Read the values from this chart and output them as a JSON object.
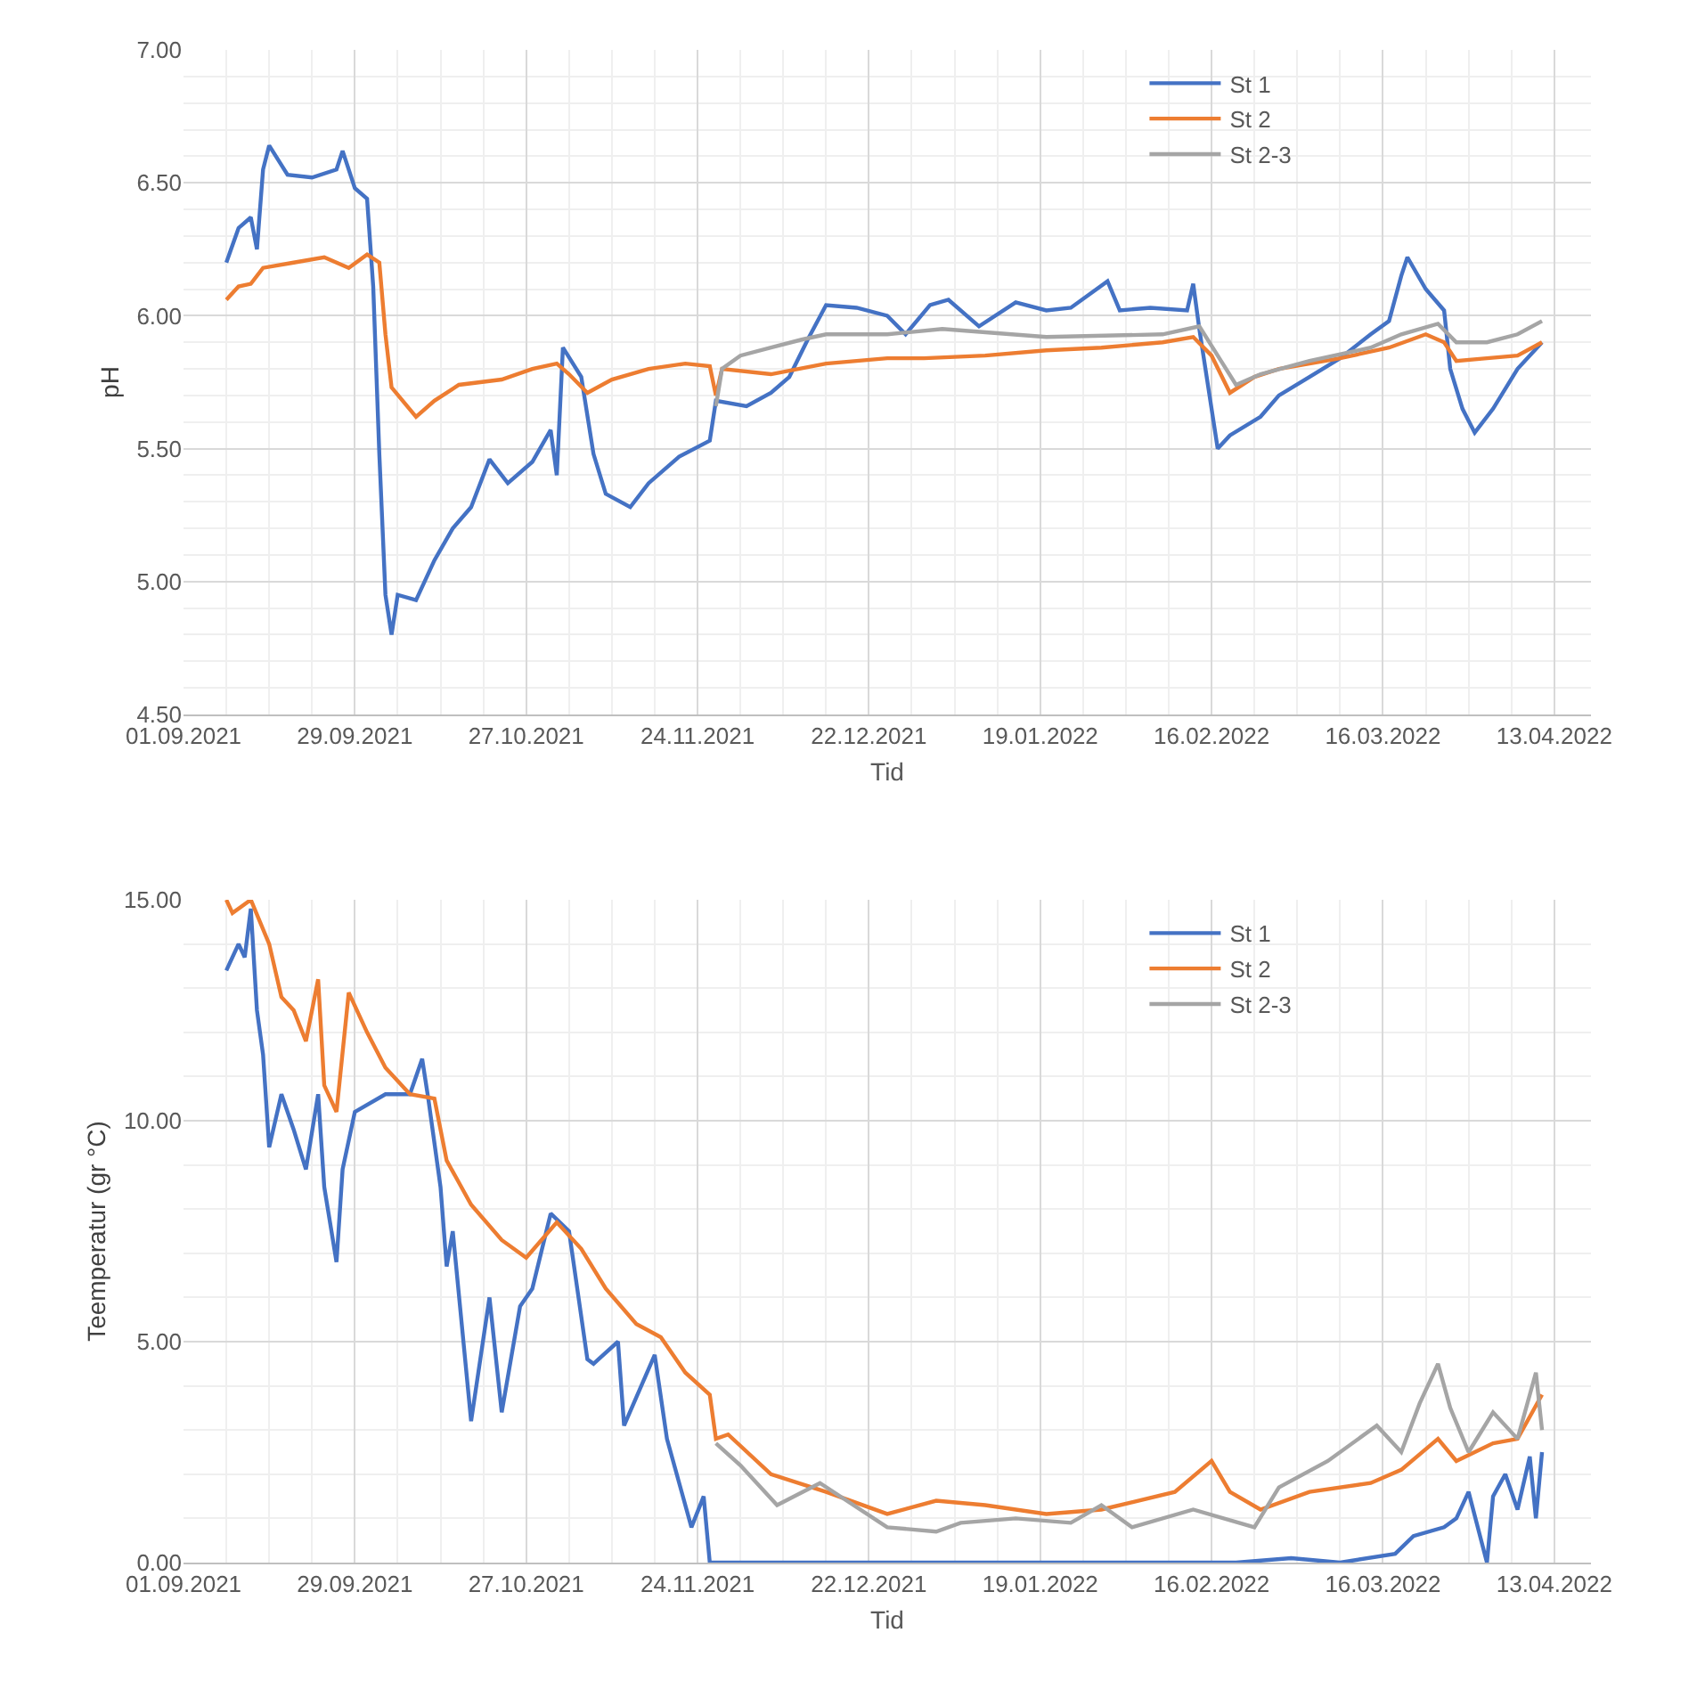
{
  "chart_data": [
    {
      "type": "line",
      "xlabel": "Tid",
      "ylabel": "pH",
      "ylim": [
        4.5,
        7.0
      ],
      "yticks": [
        {
          "value": 4.5,
          "label": "4.50"
        },
        {
          "value": 5.0,
          "label": "5.00"
        },
        {
          "value": 5.5,
          "label": "5.50"
        },
        {
          "value": 6.0,
          "label": "6.00"
        },
        {
          "value": 6.5,
          "label": "6.50"
        },
        {
          "value": 7.0,
          "label": "7.00"
        }
      ],
      "xlim": [
        "2021-09-01",
        "2022-04-19"
      ],
      "xticks": [
        {
          "value": "2021-09-01",
          "label": "01.09.2021"
        },
        {
          "value": "2021-09-29",
          "label": "29.09.2021"
        },
        {
          "value": "2021-10-27",
          "label": "27.10.2021"
        },
        {
          "value": "2021-11-24",
          "label": "24.11.2021"
        },
        {
          "value": "2021-12-22",
          "label": "22.12.2021"
        },
        {
          "value": "2022-01-19",
          "label": "19.01.2022"
        },
        {
          "value": "2022-02-16",
          "label": "16.02.2022"
        },
        {
          "value": "2022-03-16",
          "label": "16.03.2022"
        },
        {
          "value": "2022-04-13",
          "label": "13.04.2022"
        }
      ],
      "grid": true,
      "legend": "top right",
      "marker": "none",
      "line_style": "solid",
      "series": [
        {
          "name": "St 1",
          "color": "#4472c4",
          "x": [
            "2021-09-08",
            "2021-09-10",
            "2021-09-12",
            "2021-09-13",
            "2021-09-14",
            "2021-09-15",
            "2021-09-18",
            "2021-09-22",
            "2021-09-26",
            "2021-09-27",
            "2021-09-29",
            "2021-10-01",
            "2021-10-02",
            "2021-10-03",
            "2021-10-04",
            "2021-10-05",
            "2021-10-06",
            "2021-10-09",
            "2021-10-12",
            "2021-10-15",
            "2021-10-18",
            "2021-10-21",
            "2021-10-24",
            "2021-10-28",
            "2021-10-31",
            "2021-11-01",
            "2021-11-02",
            "2021-11-05",
            "2021-11-07",
            "2021-11-09",
            "2021-11-13",
            "2021-11-16",
            "2021-11-21",
            "2021-11-26",
            "2021-11-27",
            "2021-12-02",
            "2021-12-06",
            "2021-12-09",
            "2021-12-12",
            "2021-12-15",
            "2021-12-20",
            "2021-12-25",
            "2021-12-28",
            "2022-01-01",
            "2022-01-04",
            "2022-01-09",
            "2022-01-15",
            "2022-01-20",
            "2022-01-24",
            "2022-01-30",
            "2022-02-01",
            "2022-02-06",
            "2022-02-12",
            "2022-02-13",
            "2022-02-14",
            "2022-02-17",
            "2022-02-19",
            "2022-02-24",
            "2022-02-27",
            "2022-03-04",
            "2022-03-09",
            "2022-03-14",
            "2022-03-17",
            "2022-03-19",
            "2022-03-20",
            "2022-03-23",
            "2022-03-26",
            "2022-03-27",
            "2022-03-29",
            "2022-03-31",
            "2022-04-03",
            "2022-04-07",
            "2022-04-11"
          ],
          "values": [
            6.2,
            6.33,
            6.37,
            6.25,
            6.55,
            6.64,
            6.53,
            6.52,
            6.55,
            6.62,
            6.48,
            6.44,
            6.11,
            5.48,
            4.95,
            4.8,
            4.95,
            4.93,
            5.08,
            5.2,
            5.28,
            5.46,
            5.37,
            5.45,
            5.57,
            5.4,
            5.88,
            5.77,
            5.48,
            5.33,
            5.28,
            5.37,
            5.47,
            5.53,
            5.68,
            5.66,
            5.71,
            5.77,
            5.91,
            6.04,
            6.03,
            6.0,
            5.93,
            6.04,
            6.06,
            5.96,
            6.05,
            6.02,
            6.03,
            6.13,
            6.02,
            6.03,
            6.02,
            6.12,
            5.95,
            5.5,
            5.55,
            5.62,
            5.7,
            5.77,
            5.84,
            5.93,
            5.98,
            6.15,
            6.22,
            6.1,
            6.02,
            5.8,
            5.65,
            5.56,
            5.65,
            5.8,
            5.9
          ]
        },
        {
          "name": "St 2",
          "color": "#ed7d31",
          "x": [
            "2021-09-08",
            "2021-09-10",
            "2021-09-12",
            "2021-09-14",
            "2021-09-19",
            "2021-09-24",
            "2021-09-28",
            "2021-10-01",
            "2021-10-03",
            "2021-10-04",
            "2021-10-05",
            "2021-10-09",
            "2021-10-12",
            "2021-10-16",
            "2021-10-23",
            "2021-10-28",
            "2021-11-01",
            "2021-11-03",
            "2021-11-06",
            "2021-11-10",
            "2021-11-16",
            "2021-11-22",
            "2021-11-26",
            "2021-11-27",
            "2021-11-28",
            "2021-12-06",
            "2021-12-15",
            "2021-12-25",
            "2021-12-31",
            "2022-01-10",
            "2022-01-20",
            "2022-01-29",
            "2022-02-08",
            "2022-02-13",
            "2022-02-16",
            "2022-02-19",
            "2022-02-23",
            "2022-02-27",
            "2022-03-09",
            "2022-03-17",
            "2022-03-23",
            "2022-03-26",
            "2022-03-28",
            "2022-04-02",
            "2022-04-07",
            "2022-04-11"
          ],
          "values": [
            6.06,
            6.11,
            6.12,
            6.18,
            6.2,
            6.22,
            6.18,
            6.23,
            6.2,
            5.93,
            5.73,
            5.62,
            5.68,
            5.74,
            5.76,
            5.8,
            5.82,
            5.78,
            5.71,
            5.76,
            5.8,
            5.82,
            5.81,
            5.7,
            5.8,
            5.78,
            5.82,
            5.84,
            5.84,
            5.85,
            5.87,
            5.88,
            5.9,
            5.92,
            5.85,
            5.71,
            5.77,
            5.8,
            5.84,
            5.88,
            5.93,
            5.9,
            5.83,
            5.84,
            5.85,
            5.9
          ]
        },
        {
          "name": "St 2-3",
          "color": "#a5a5a5",
          "x": [
            "2021-11-27",
            "2021-11-28",
            "2021-12-01",
            "2021-12-06",
            "2021-12-11",
            "2021-12-15",
            "2021-12-25",
            "2022-01-03",
            "2022-01-20",
            "2022-02-08",
            "2022-02-14",
            "2022-02-17",
            "2022-02-20",
            "2022-02-24",
            "2022-03-04",
            "2022-03-14",
            "2022-03-19",
            "2022-03-25",
            "2022-03-28",
            "2022-04-02",
            "2022-04-07",
            "2022-04-11"
          ],
          "values": [
            5.66,
            5.8,
            5.85,
            5.88,
            5.91,
            5.93,
            5.93,
            5.95,
            5.92,
            5.93,
            5.96,
            5.85,
            5.74,
            5.78,
            5.83,
            5.88,
            5.93,
            5.97,
            5.9,
            5.9,
            5.93,
            5.98
          ]
        }
      ]
    },
    {
      "type": "line",
      "xlabel": "Tid",
      "ylabel": "Teemperatur (gr °C)",
      "ylim": [
        0,
        15
      ],
      "yticks": [
        {
          "value": 0,
          "label": "0.00"
        },
        {
          "value": 5,
          "label": "5.00"
        },
        {
          "value": 10,
          "label": "10.00"
        },
        {
          "value": 15,
          "label": "15.00"
        }
      ],
      "xlim": [
        "2021-09-01",
        "2022-04-19"
      ],
      "xticks": [
        {
          "value": "2021-09-01",
          "label": "01.09.2021"
        },
        {
          "value": "2021-09-29",
          "label": "29.09.2021"
        },
        {
          "value": "2021-10-27",
          "label": "27.10.2021"
        },
        {
          "value": "2021-11-24",
          "label": "24.11.2021"
        },
        {
          "value": "2021-12-22",
          "label": "22.12.2021"
        },
        {
          "value": "2022-01-19",
          "label": "19.01.2022"
        },
        {
          "value": "2022-02-16",
          "label": "16.02.2022"
        },
        {
          "value": "2022-03-16",
          "label": "16.03.2022"
        },
        {
          "value": "2022-04-13",
          "label": "13.04.2022"
        }
      ],
      "grid": true,
      "legend": "top right",
      "marker": "none",
      "line_style": "solid",
      "series": [
        {
          "name": "St 1",
          "color": "#4472c4",
          "x": [
            "2021-09-08",
            "2021-09-10",
            "2021-09-11",
            "2021-09-12",
            "2021-09-13",
            "2021-09-14",
            "2021-09-15",
            "2021-09-17",
            "2021-09-19",
            "2021-09-21",
            "2021-09-23",
            "2021-09-24",
            "2021-09-26",
            "2021-09-27",
            "2021-09-29",
            "2021-10-04",
            "2021-10-08",
            "2021-10-10",
            "2021-10-11",
            "2021-10-13",
            "2021-10-14",
            "2021-10-15",
            "2021-10-18",
            "2021-10-21",
            "2021-10-23",
            "2021-10-26",
            "2021-10-28",
            "2021-10-31",
            "2021-11-03",
            "2021-11-06",
            "2021-11-07",
            "2021-11-11",
            "2021-11-12",
            "2021-11-17",
            "2021-11-19",
            "2021-11-23",
            "2021-11-25",
            "2021-11-26",
            "2021-12-15",
            "2022-01-20",
            "2022-02-20",
            "2022-03-01",
            "2022-03-09",
            "2022-03-18",
            "2022-03-21",
            "2022-03-26",
            "2022-03-28",
            "2022-03-30",
            "2022-04-02",
            "2022-04-03",
            "2022-04-05",
            "2022-04-07",
            "2022-04-09",
            "2022-04-10",
            "2022-04-11"
          ],
          "values": [
            13.4,
            14.0,
            13.7,
            14.8,
            12.5,
            11.5,
            9.4,
            10.6,
            9.8,
            8.9,
            10.6,
            8.5,
            6.8,
            8.9,
            10.2,
            10.6,
            10.6,
            11.4,
            10.5,
            8.5,
            6.7,
            7.5,
            3.2,
            6.0,
            3.4,
            5.8,
            6.2,
            7.9,
            7.5,
            4.6,
            4.5,
            5.0,
            3.1,
            4.7,
            2.8,
            0.8,
            1.5,
            0.0,
            0.0,
            0.0,
            0.0,
            0.1,
            0.0,
            0.2,
            0.6,
            0.8,
            1.0,
            1.6,
            0.0,
            1.5,
            2.0,
            1.2,
            2.4,
            1.0,
            2.5
          ]
        },
        {
          "name": "St 2",
          "color": "#ed7d31",
          "x": [
            "2021-09-08",
            "2021-09-09",
            "2021-09-12",
            "2021-09-15",
            "2021-09-17",
            "2021-09-19",
            "2021-09-21",
            "2021-09-23",
            "2021-09-24",
            "2021-09-26",
            "2021-09-28",
            "2021-10-01",
            "2021-10-04",
            "2021-10-08",
            "2021-10-12",
            "2021-10-14",
            "2021-10-18",
            "2021-10-23",
            "2021-10-27",
            "2021-11-01",
            "2021-11-05",
            "2021-11-09",
            "2021-11-14",
            "2021-11-18",
            "2021-11-22",
            "2021-11-26",
            "2021-11-27",
            "2021-11-29",
            "2021-12-06",
            "2021-12-15",
            "2021-12-25",
            "2022-01-02",
            "2022-01-10",
            "2022-01-20",
            "2022-01-29",
            "2022-02-10",
            "2022-02-16",
            "2022-02-19",
            "2022-02-24",
            "2022-03-04",
            "2022-03-14",
            "2022-03-19",
            "2022-03-25",
            "2022-03-28",
            "2022-04-03",
            "2022-04-07",
            "2022-04-11"
          ],
          "values": [
            15.0,
            14.7,
            15.0,
            14.0,
            12.8,
            12.5,
            11.8,
            13.2,
            10.8,
            10.2,
            12.9,
            12.0,
            11.2,
            10.6,
            10.5,
            9.1,
            8.1,
            7.3,
            6.9,
            7.7,
            7.1,
            6.2,
            5.4,
            5.1,
            4.3,
            3.8,
            2.8,
            2.9,
            2.0,
            1.6,
            1.1,
            1.4,
            1.3,
            1.1,
            1.2,
            1.6,
            2.3,
            1.6,
            1.2,
            1.6,
            1.8,
            2.1,
            2.8,
            2.3,
            2.7,
            2.8,
            3.8
          ]
        },
        {
          "name": "St 2-3",
          "color": "#a5a5a5",
          "x": [
            "2021-11-27",
            "2021-12-01",
            "2021-12-07",
            "2021-12-14",
            "2021-12-25",
            "2022-01-02",
            "2022-01-06",
            "2022-01-15",
            "2022-01-24",
            "2022-01-29",
            "2022-02-03",
            "2022-02-13",
            "2022-02-23",
            "2022-02-27",
            "2022-03-07",
            "2022-03-15",
            "2022-03-19",
            "2022-03-22",
            "2022-03-25",
            "2022-03-27",
            "2022-03-30",
            "2022-04-03",
            "2022-04-07",
            "2022-04-10",
            "2022-04-11"
          ],
          "values": [
            2.7,
            2.2,
            1.3,
            1.8,
            0.8,
            0.7,
            0.9,
            1.0,
            0.9,
            1.3,
            0.8,
            1.2,
            0.8,
            1.7,
            2.3,
            3.1,
            2.5,
            3.6,
            4.5,
            3.5,
            2.5,
            3.4,
            2.8,
            4.3,
            3.0
          ]
        }
      ]
    }
  ]
}
